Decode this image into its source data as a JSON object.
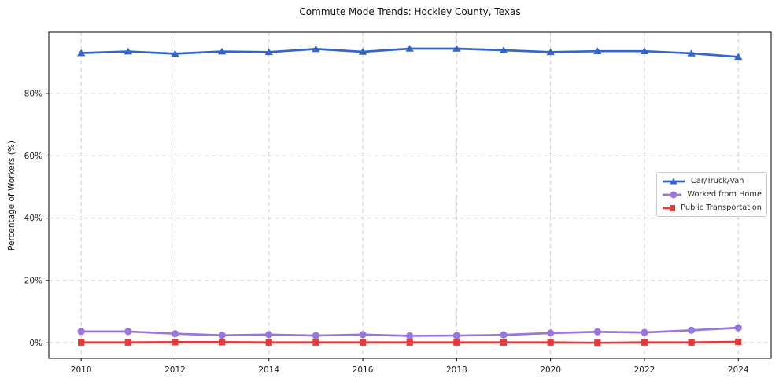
{
  "chart_data": {
    "type": "line",
    "title": "Commute Mode Trends: Hockley County, Texas",
    "xlabel": "",
    "ylabel": "Percentage of Workers (%)",
    "x": [
      2010,
      2011,
      2012,
      2013,
      2014,
      2015,
      2016,
      2017,
      2018,
      2019,
      2020,
      2021,
      2022,
      2023,
      2024
    ],
    "series": [
      {
        "name": "Car/Truck/Van",
        "color": "#3465c8",
        "marker": "triangle",
        "values": [
          93.0,
          93.5,
          92.8,
          93.5,
          93.3,
          94.3,
          93.4,
          94.4,
          94.4,
          93.9,
          93.3,
          93.6,
          93.6,
          92.9,
          91.8
        ]
      },
      {
        "name": "Worked from Home",
        "color": "#9a76d8",
        "marker": "circle",
        "values": [
          3.6,
          3.6,
          2.9,
          2.4,
          2.6,
          2.3,
          2.6,
          2.2,
          2.3,
          2.5,
          3.1,
          3.5,
          3.3,
          4.0,
          4.8
        ]
      },
      {
        "name": "Public Transportation",
        "color": "#e23b3b",
        "marker": "square",
        "values": [
          0.1,
          0.1,
          0.2,
          0.2,
          0.1,
          0.1,
          0.1,
          0.1,
          0.1,
          0.1,
          0.1,
          0.0,
          0.1,
          0.1,
          0.3
        ]
      }
    ],
    "xlim": [
      2009.31,
      2024.7
    ],
    "ylim": [
      -5.0,
      99.7
    ],
    "xticks": [
      2010,
      2012,
      2014,
      2016,
      2018,
      2020,
      2022,
      2024
    ],
    "xtick_labels": [
      "2010",
      "2012",
      "2014",
      "2016",
      "2018",
      "2020",
      "2022",
      "2024"
    ],
    "yticks": [
      0,
      20,
      40,
      60,
      80
    ],
    "ytick_labels": [
      "0%",
      "20%",
      "40%",
      "60%",
      "80%"
    ],
    "grid": true,
    "legend_position": "center-right",
    "background_color": "#ffffff"
  }
}
